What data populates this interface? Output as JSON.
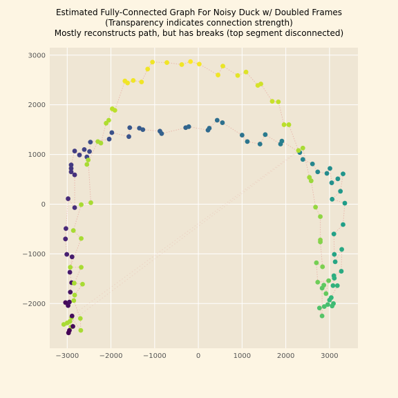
{
  "chart_data": {
    "type": "scatter",
    "title": [
      "Estimated Fully-Connected Graph For Noisy Duck w/ Doubled Frames",
      "(Transparency indicates connection strength)",
      "Mostly reconstructs path, but has breaks (top segment disconnected)"
    ],
    "xlabel": "",
    "ylabel": "",
    "xlim": [
      -3400,
      3650
    ],
    "ylim": [
      -2900,
      3150
    ],
    "xticks": [
      -3000,
      -2000,
      -1000,
      0,
      1000,
      2000,
      3000
    ],
    "yticks": [
      -2000,
      -1000,
      0,
      1000,
      2000,
      3000
    ],
    "grid": true,
    "colormap": "viridis",
    "edge_color": "#e06060",
    "plot_background": "#efe6d4",
    "points": [
      [
        -3040,
        -1980,
        0.02
      ],
      [
        -2980,
        -2040,
        0.03
      ],
      [
        -2950,
        -1970,
        0.04
      ],
      [
        -2930,
        -1770,
        0.05
      ],
      [
        -2900,
        -1580,
        0.06
      ],
      [
        -2940,
        -1370,
        0.07
      ],
      [
        -2890,
        -1060,
        0.08
      ],
      [
        -3010,
        -1010,
        0.09
      ],
      [
        -3040,
        -700,
        0.1
      ],
      [
        -3030,
        -490,
        0.11
      ],
      [
        -2980,
        110,
        0.12
      ],
      [
        -2830,
        -70,
        0.13
      ],
      [
        -2830,
        590,
        0.14
      ],
      [
        -2910,
        650,
        0.15
      ],
      [
        -2910,
        720,
        0.16
      ],
      [
        -2910,
        790,
        0.17
      ],
      [
        -2830,
        1070,
        0.18
      ],
      [
        -2720,
        990,
        0.19
      ],
      [
        -2610,
        1100,
        0.2
      ],
      [
        -2550,
        950,
        0.21
      ],
      [
        -2490,
        1060,
        0.22
      ],
      [
        -2470,
        1250,
        0.23
      ],
      [
        -2040,
        1310,
        0.24
      ],
      [
        -1980,
        1440,
        0.25
      ],
      [
        -1590,
        1360,
        0.26
      ],
      [
        -1570,
        1540,
        0.27
      ],
      [
        -1350,
        1530,
        0.28
      ],
      [
        -1270,
        1500,
        0.29
      ],
      [
        -880,
        1470,
        0.3
      ],
      [
        -840,
        1420,
        0.31
      ],
      [
        -290,
        1540,
        0.32
      ],
      [
        -220,
        1560,
        0.33
      ],
      [
        220,
        1490,
        0.34
      ],
      [
        250,
        1530,
        0.35
      ],
      [
        430,
        1690,
        0.36
      ],
      [
        550,
        1640,
        0.37
      ],
      [
        1000,
        1390,
        0.38
      ],
      [
        1120,
        1260,
        0.39
      ],
      [
        1410,
        1210,
        0.4
      ],
      [
        1530,
        1400,
        0.41
      ],
      [
        1880,
        1210,
        0.42
      ],
      [
        1910,
        1270,
        0.43
      ],
      [
        2320,
        1040,
        0.44
      ],
      [
        2390,
        900,
        0.45
      ],
      [
        2610,
        810,
        0.46
      ],
      [
        2730,
        650,
        0.47
      ],
      [
        2940,
        620,
        0.48
      ],
      [
        3010,
        720,
        0.49
      ],
      [
        3050,
        430,
        0.5
      ],
      [
        3190,
        510,
        0.51
      ],
      [
        3310,
        610,
        0.52
      ],
      [
        3250,
        260,
        0.53
      ],
      [
        3060,
        100,
        0.54
      ],
      [
        3350,
        20,
        0.55
      ],
      [
        3310,
        -410,
        0.56
      ],
      [
        3100,
        -600,
        0.57
      ],
      [
        3110,
        -1010,
        0.58
      ],
      [
        3130,
        -1160,
        0.59
      ],
      [
        3280,
        -910,
        0.6
      ],
      [
        3270,
        -1350,
        0.61
      ],
      [
        3100,
        -1440,
        0.62
      ],
      [
        3110,
        -1490,
        0.63
      ],
      [
        3080,
        -1640,
        0.64
      ],
      [
        3180,
        -1640,
        0.65
      ],
      [
        3040,
        -1880,
        0.66
      ],
      [
        3000,
        -1930,
        0.67
      ],
      [
        3090,
        -2000,
        0.68
      ],
      [
        3060,
        -2050,
        0.69
      ],
      [
        2960,
        -2020,
        0.7
      ],
      [
        2880,
        -2060,
        0.71
      ],
      [
        2770,
        -2090,
        0.72
      ],
      [
        2830,
        -2250,
        0.73
      ],
      [
        2830,
        -1690,
        0.74
      ],
      [
        2870,
        -1630,
        0.75
      ],
      [
        2920,
        -1800,
        0.76
      ],
      [
        2980,
        -1540,
        0.77
      ],
      [
        2730,
        -1570,
        0.78
      ],
      [
        2700,
        -1180,
        0.79
      ],
      [
        2840,
        -1260,
        0.8
      ],
      [
        2790,
        -760,
        0.81
      ],
      [
        2790,
        -720,
        0.82
      ],
      [
        2790,
        -250,
        0.83
      ],
      [
        2680,
        -60,
        0.84
      ],
      [
        2580,
        470,
        0.85
      ],
      [
        2540,
        540,
        0.86
      ],
      [
        2390,
        1130,
        0.87
      ],
      [
        2290,
        1080,
        0.88
      ],
      [
        2070,
        1600,
        0.89
      ],
      [
        1960,
        1600,
        0.9
      ],
      [
        1830,
        2060,
        0.91
      ],
      [
        1690,
        2070,
        0.92
      ],
      [
        1430,
        2420,
        0.93
      ],
      [
        1360,
        2390,
        0.94
      ],
      [
        1090,
        2660,
        0.95
      ],
      [
        900,
        2590,
        0.96
      ],
      [
        560,
        2780,
        0.97
      ],
      [
        450,
        2600,
        0.98
      ],
      [
        20,
        2820,
        0.99
      ],
      [
        -180,
        2870,
        1.0
      ],
      [
        -380,
        2810,
        0.98
      ],
      [
        -720,
        2850,
        0.98
      ],
      [
        -1050,
        2860,
        0.98
      ],
      [
        -1160,
        2720,
        0.98
      ],
      [
        -1300,
        2460,
        0.98
      ],
      [
        -1490,
        2490,
        0.98
      ],
      [
        -1620,
        2440,
        0.98
      ],
      [
        -1680,
        2480,
        0.98
      ],
      [
        -1910,
        1890,
        0.9
      ],
      [
        -1970,
        1920,
        0.9
      ],
      [
        -2050,
        1690,
        0.88
      ],
      [
        -2110,
        1630,
        0.88
      ],
      [
        -2230,
        1230,
        0.87
      ],
      [
        -2300,
        1260,
        0.87
      ],
      [
        -2550,
        800,
        0.87
      ],
      [
        -2520,
        890,
        0.87
      ],
      [
        -2460,
        30,
        0.87
      ],
      [
        -2680,
        -10,
        0.87
      ],
      [
        -2860,
        -530,
        0.87
      ],
      [
        -2680,
        -690,
        0.87
      ],
      [
        -2930,
        -1270,
        0.87
      ],
      [
        -2680,
        -1270,
        0.87
      ],
      [
        -2840,
        -1590,
        0.87
      ],
      [
        -2650,
        -1610,
        0.87
      ],
      [
        -2830,
        -1830,
        0.87
      ],
      [
        -2850,
        -1940,
        0.87
      ],
      [
        -2700,
        -2300,
        0.87
      ],
      [
        -2690,
        -2540,
        0.87
      ],
      [
        -2900,
        -2280,
        0.87
      ],
      [
        -2940,
        -2360,
        0.87
      ],
      [
        -3000,
        -2390,
        0.87
      ],
      [
        -3080,
        -2420,
        0.87
      ],
      [
        -2910,
        -2470,
        0.87
      ],
      [
        -2950,
        -2540,
        0.01
      ],
      [
        -2970,
        -2590,
        0.0
      ],
      [
        -2870,
        -2460,
        0.02
      ],
      [
        -2890,
        -2250,
        0.03
      ]
    ]
  }
}
